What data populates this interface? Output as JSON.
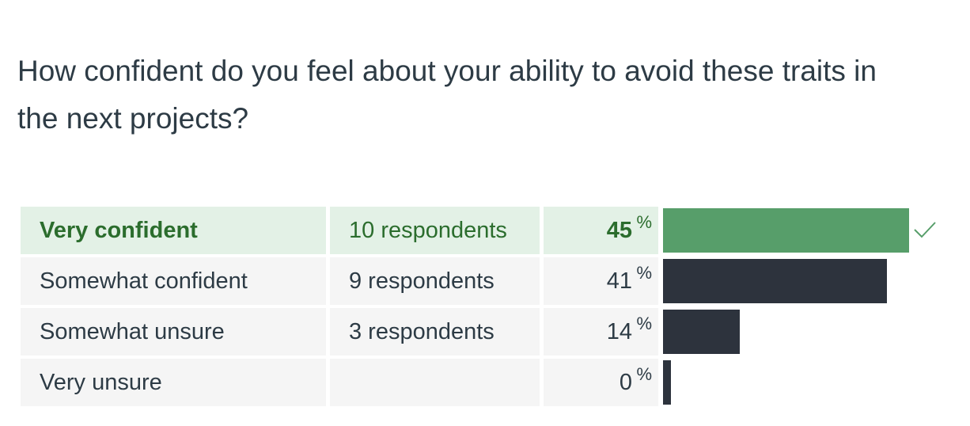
{
  "question": {
    "text": "How confident do you feel about your ability to avoid these traits in the next projects?"
  },
  "results": {
    "percent_symbol": "%",
    "rows": [
      {
        "answer": "Very confident",
        "respondents": "10 respondents",
        "percent": "45",
        "fraction": 0.45,
        "correct": true
      },
      {
        "answer": "Somewhat confident",
        "respondents": "9 respondents",
        "percent": "41",
        "fraction": 0.41,
        "correct": false
      },
      {
        "answer": "Somewhat unsure",
        "respondents": "3 respondents",
        "percent": "14",
        "fraction": 0.14,
        "correct": false
      },
      {
        "answer": "Very unsure",
        "respondents": "",
        "percent": "0",
        "fraction": 0.0,
        "correct": false
      }
    ]
  },
  "colors": {
    "correct_bar": "#579e6a",
    "bar": "#2d333d",
    "correct_row_bg": "#e3f1e6",
    "row_bg": "#f5f5f5",
    "correct_text": "#2b6d2d",
    "text": "#2d3b45"
  },
  "icons": {
    "correct_marker": "checkmark-icon"
  }
}
